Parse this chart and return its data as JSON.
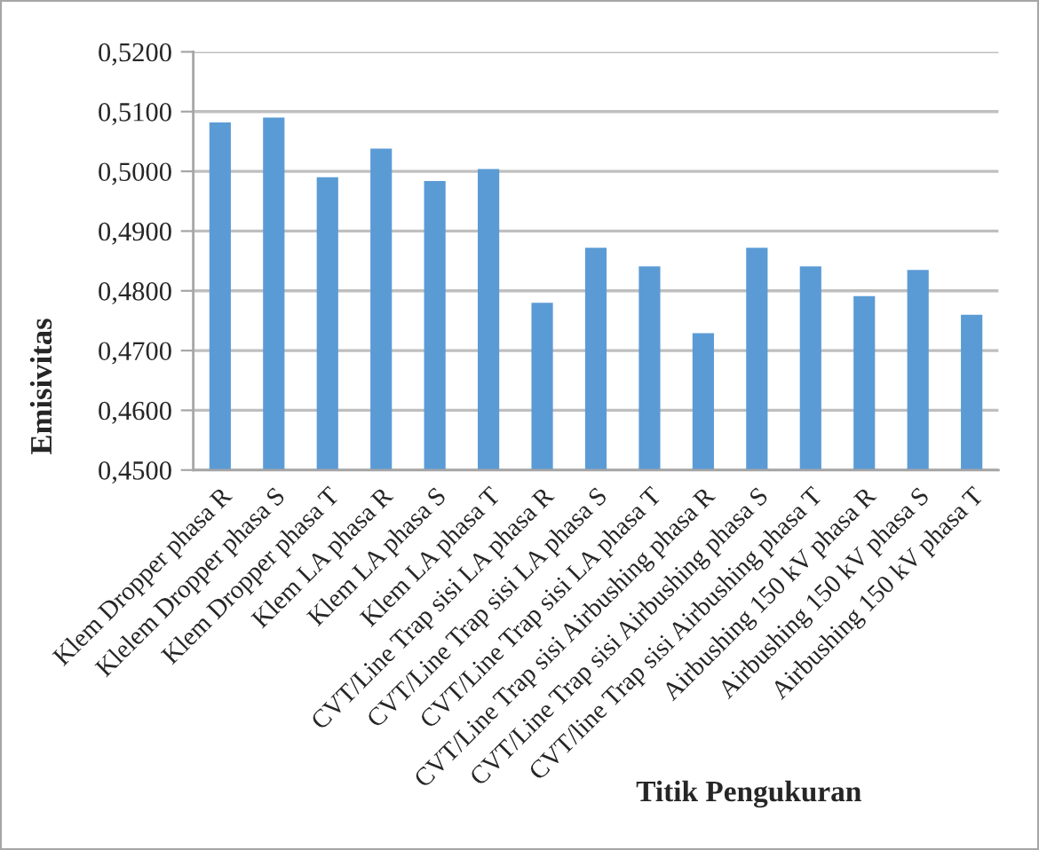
{
  "chart_data": {
    "type": "bar",
    "categories": [
      "Klem Dropper phasa R",
      "Klelem Dropper phasa S",
      "Klem Dropper phasa T",
      "Klem LA phasa R",
      "Klem LA phasa S",
      "Klem LA phasa T",
      "CVT/Line Trap sisi LA phasa R",
      "CVT/Line Trap sisi LA phasa S",
      "CVT/Line Trap sisi LA phasa T",
      "CVT/Line Trap sisi Airbushing phasa R",
      "CVT/Line Trap sisi Airbushing phasa S",
      "CVT/line Trap sisi Airbushing phasa T",
      "Airbushing 150 kV phasa R",
      "Airbushing 150 kV phasa S",
      "Airbushing 150 kV phasa T"
    ],
    "values": [
      0.5082,
      0.509,
      0.499,
      0.5038,
      0.4984,
      0.5004,
      0.478,
      0.4872,
      0.4841,
      0.4729,
      0.4872,
      0.4841,
      0.4791,
      0.4835,
      0.476
    ],
    "color": "#5b9bd5",
    "xlabel": "Titik Pengukuran",
    "ylabel": "Emisivitas",
    "ylim": [
      0.45,
      0.52
    ],
    "yticks": [
      {
        "value": 0.45,
        "label": "0,4500"
      },
      {
        "value": 0.46,
        "label": "0,4600"
      },
      {
        "value": 0.47,
        "label": "0,4700"
      },
      {
        "value": 0.48,
        "label": "0,4800"
      },
      {
        "value": 0.49,
        "label": "0,4900"
      },
      {
        "value": 0.5,
        "label": "0,5000"
      },
      {
        "value": 0.51,
        "label": "0,5100"
      },
      {
        "value": 0.52,
        "label": "0,5200"
      }
    ],
    "grid": "y"
  }
}
